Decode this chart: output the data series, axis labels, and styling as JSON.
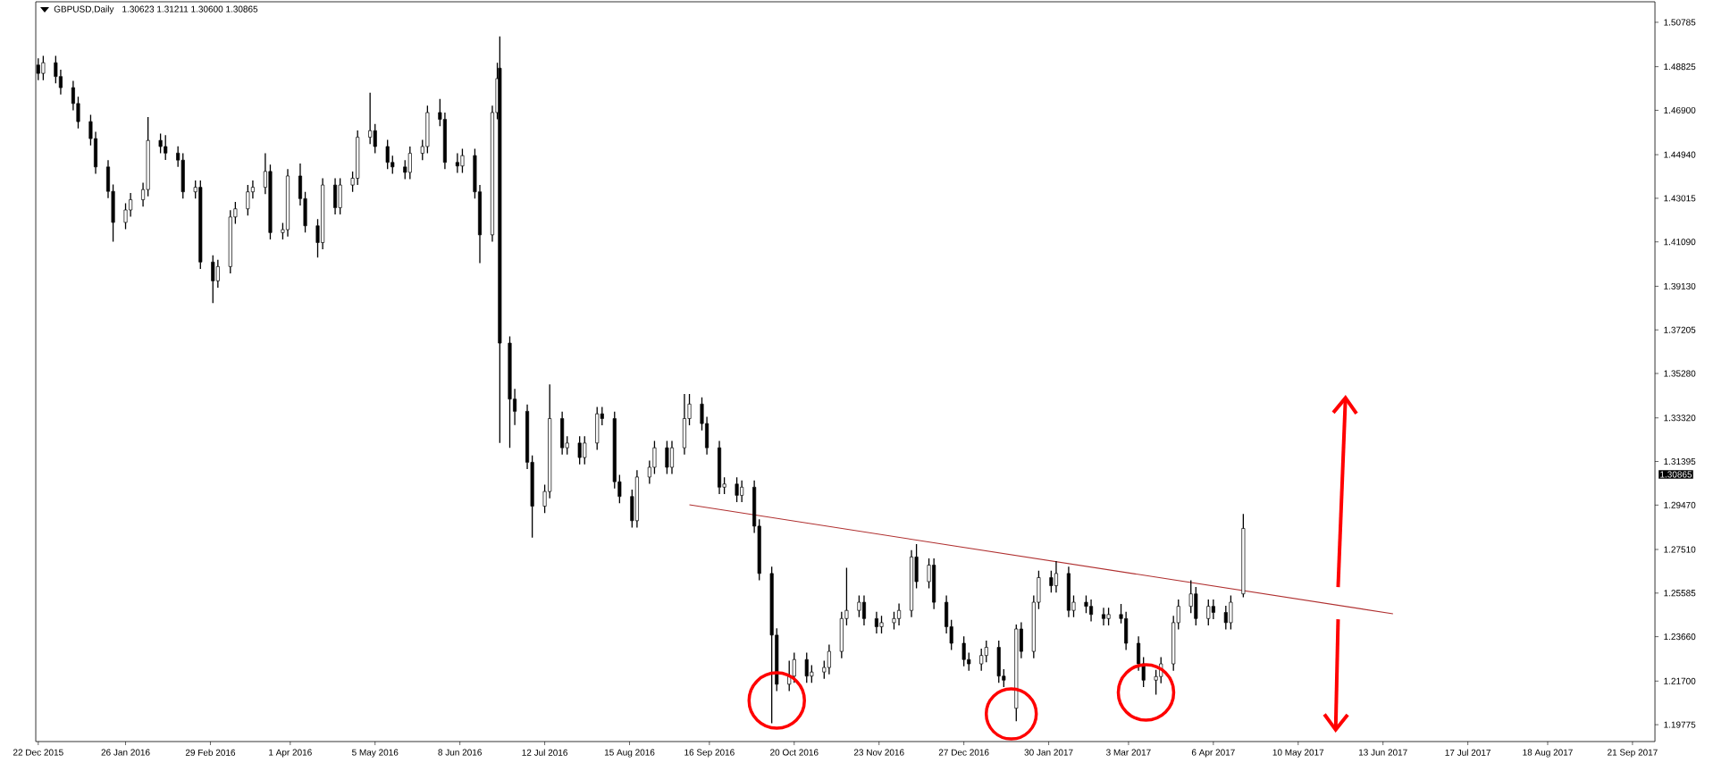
{
  "chart_data": {
    "type": "candlestick",
    "title": "GBPUSD,Daily",
    "subtitle": "1.30623 1.31211 1.30600 1.30865",
    "xlim": [
      "2015-12-21",
      "2017-09-30"
    ],
    "ylim": [
      1.1903,
      1.5169
    ],
    "xticks": [
      {
        "value": "2015-12-22",
        "label": "22 Dec 2015"
      },
      {
        "value": "2016-01-26",
        "label": "26 Jan 2016"
      },
      {
        "value": "2016-02-29",
        "label": "29 Feb 2016"
      },
      {
        "value": "2016-04-01",
        "label": "1 Apr 2016"
      },
      {
        "value": "2016-05-05",
        "label": "5 May 2016"
      },
      {
        "value": "2016-06-08",
        "label": "8 Jun 2016"
      },
      {
        "value": "2016-07-12",
        "label": "12 Jul 2016"
      },
      {
        "value": "2016-08-15",
        "label": "15 Aug 2016"
      },
      {
        "value": "2016-09-16",
        "label": "16 Sep 2016"
      },
      {
        "value": "2016-10-20",
        "label": "20 Oct 2016"
      },
      {
        "value": "2016-11-23",
        "label": "23 Nov 2016"
      },
      {
        "value": "2016-12-27",
        "label": "27 Dec 2016"
      },
      {
        "value": "2017-01-30",
        "label": "30 Jan 2017"
      },
      {
        "value": "2017-03-03",
        "label": "3 Mar 2017"
      },
      {
        "value": "2017-04-06",
        "label": "6 Apr 2017"
      },
      {
        "value": "2017-05-10",
        "label": "10 May 2017"
      },
      {
        "value": "2017-06-13",
        "label": "13 Jun 2017"
      },
      {
        "value": "2017-07-17",
        "label": "17 Jul 2017"
      },
      {
        "value": "2017-08-18",
        "label": "18 Aug 2017"
      },
      {
        "value": "2017-09-21",
        "label": "21 Sep 2017"
      }
    ],
    "yticks": [
      1.50785,
      1.48825,
      {
        "value": 1.469,
        "label": "1.46900"
      },
      {
        "value": 1.4494,
        "label": "1.44940"
      },
      1.43015,
      {
        "value": 1.4109,
        "label": "1.41090"
      },
      {
        "value": 1.3913,
        "label": "1.39130"
      },
      1.37205,
      {
        "value": 1.3528,
        "label": "1.35280"
      },
      {
        "value": 1.3332,
        "label": "1.33320"
      },
      1.31395,
      {
        "value": 1.2947,
        "label": "1.29470"
      },
      {
        "value": 1.2751,
        "label": "1.27510"
      },
      1.25585,
      {
        "value": 1.2366,
        "label": "1.23660"
      },
      {
        "value": 1.217,
        "label": "1.21700"
      },
      1.19775
    ],
    "annotations": [
      "1.30865"
    ],
    "series": [
      {
        "type": "line",
        "color": "#b03030",
        "x": [
          "2016-09-08",
          "2017-06-17"
        ],
        "values": [
          1.2948,
          1.2467
        ]
      },
      {
        "color": "#000000",
        "x": [
          "2015-12-22",
          "2015-12-24",
          "2015-12-29",
          "2015-12-31",
          "2016-01-05",
          "2016-01-07",
          "2016-01-12",
          "2016-01-14",
          "2016-01-19",
          "2016-01-21",
          "2016-01-26",
          "2016-01-28",
          "2016-02-02",
          "2016-02-04",
          "2016-02-09",
          "2016-02-11",
          "2016-02-16",
          "2016-02-18",
          "2016-02-23",
          "2016-02-25",
          "2016-03-01",
          "2016-03-03",
          "2016-03-08",
          "2016-03-10",
          "2016-03-15",
          "2016-03-17",
          "2016-03-22",
          "2016-03-24",
          "2016-03-29",
          "2016-03-31",
          "2016-04-05",
          "2016-04-07",
          "2016-04-12",
          "2016-04-14",
          "2016-04-19",
          "2016-04-21",
          "2016-04-26",
          "2016-04-28",
          "2016-05-03",
          "2016-05-05",
          "2016-05-10",
          "2016-05-12",
          "2016-05-17",
          "2016-05-19",
          "2016-05-24",
          "2016-05-26",
          "2016-05-31",
          "2016-06-02",
          "2016-06-07",
          "2016-06-09",
          "2016-06-14",
          "2016-06-16",
          "2016-06-21",
          "2016-06-23",
          "2016-06-24",
          "2016-06-28",
          "2016-06-30",
          "2016-07-05",
          "2016-07-07",
          "2016-07-12",
          "2016-07-14",
          "2016-07-19",
          "2016-07-21",
          "2016-07-26",
          "2016-07-28",
          "2016-08-02",
          "2016-08-04",
          "2016-08-09",
          "2016-08-11",
          "2016-08-16",
          "2016-08-18",
          "2016-08-23",
          "2016-08-25",
          "2016-08-30",
          "2016-09-01",
          "2016-09-06",
          "2016-09-08",
          "2016-09-13",
          "2016-09-15",
          "2016-09-20",
          "2016-09-22",
          "2016-09-27",
          "2016-09-29",
          "2016-10-04",
          "2016-10-06",
          "2016-10-11",
          "2016-10-13",
          "2016-10-18",
          "2016-10-20",
          "2016-10-25",
          "2016-10-27",
          "2016-11-01",
          "2016-11-03",
          "2016-11-08",
          "2016-11-10",
          "2016-11-15",
          "2016-11-17",
          "2016-11-22",
          "2016-11-24",
          "2016-11-29",
          "2016-12-01",
          "2016-12-06",
          "2016-12-08",
          "2016-12-13",
          "2016-12-15",
          "2016-12-20",
          "2016-12-22",
          "2016-12-27",
          "2016-12-29",
          "2017-01-03",
          "2017-01-05",
          "2017-01-10",
          "2017-01-12",
          "2017-01-17",
          "2017-01-19",
          "2017-01-24",
          "2017-01-26",
          "2017-01-31",
          "2017-02-02",
          "2017-02-07",
          "2017-02-09",
          "2017-02-14",
          "2017-02-16",
          "2017-02-21",
          "2017-02-23",
          "2017-02-28",
          "2017-03-02",
          "2017-03-07",
          "2017-03-09",
          "2017-03-14",
          "2017-03-16",
          "2017-03-21",
          "2017-03-23",
          "2017-03-28",
          "2017-03-30",
          "2017-04-04",
          "2017-04-06",
          "2017-04-11",
          "2017-04-13",
          "2017-04-18"
        ],
        "ohlc": [
          [
            1.489,
            1.492,
            1.4823,
            1.4853
          ],
          [
            1.4853,
            1.493,
            1.4823,
            1.49
          ],
          [
            1.49,
            1.493,
            1.4809,
            1.4839
          ],
          [
            1.4839,
            1.4869,
            1.476,
            1.479
          ],
          [
            1.479,
            1.482,
            1.469,
            1.472
          ],
          [
            1.472,
            1.475,
            1.461,
            1.464
          ],
          [
            1.464,
            1.467,
            1.4535,
            1.4565
          ],
          [
            1.4565,
            1.4595,
            1.441,
            1.444
          ],
          [
            1.444,
            1.447,
            1.4302,
            1.4332
          ],
          [
            1.4332,
            1.4362,
            1.411,
            1.4195
          ],
          [
            1.4195,
            1.428,
            1.4165,
            1.425
          ],
          [
            1.425,
            1.4325,
            1.422,
            1.4295
          ],
          [
            1.4295,
            1.437,
            1.4265,
            1.434
          ],
          [
            1.434,
            1.466,
            1.431,
            1.4557
          ],
          [
            1.4557,
            1.4587,
            1.45,
            1.453
          ],
          [
            1.453,
            1.458,
            1.4471,
            1.4501
          ],
          [
            1.4501,
            1.4531,
            1.444,
            1.447
          ],
          [
            1.447,
            1.45,
            1.43,
            1.433
          ],
          [
            1.433,
            1.438,
            1.43,
            1.435
          ],
          [
            1.435,
            1.438,
            1.399,
            1.402
          ],
          [
            1.402,
            1.405,
            1.3839,
            1.3937
          ],
          [
            1.3937,
            1.403,
            1.3907,
            1.4
          ],
          [
            1.4,
            1.4249,
            1.397,
            1.4219
          ],
          [
            1.4219,
            1.4285,
            1.4189,
            1.4255
          ],
          [
            1.4255,
            1.436,
            1.4225,
            1.433
          ],
          [
            1.433,
            1.438,
            1.43,
            1.435
          ],
          [
            1.435,
            1.45,
            1.432,
            1.442
          ],
          [
            1.442,
            1.445,
            1.412,
            1.415
          ],
          [
            1.415,
            1.4193,
            1.412,
            1.4163
          ],
          [
            1.4163,
            1.443,
            1.4133,
            1.44
          ],
          [
            1.44,
            1.4455,
            1.427,
            1.43
          ],
          [
            1.43,
            1.433,
            1.415,
            1.418
          ],
          [
            1.418,
            1.421,
            1.404,
            1.4106
          ],
          [
            1.4106,
            1.439,
            1.4076,
            1.436
          ],
          [
            1.436,
            1.439,
            1.423,
            1.426
          ],
          [
            1.426,
            1.439,
            1.423,
            1.436
          ],
          [
            1.436,
            1.442,
            1.433,
            1.439
          ],
          [
            1.439,
            1.4601,
            1.436,
            1.4571
          ],
          [
            1.4571,
            1.4768,
            1.4541,
            1.46
          ],
          [
            1.46,
            1.463,
            1.45,
            1.453
          ],
          [
            1.453,
            1.456,
            1.443,
            1.446
          ],
          [
            1.446,
            1.449,
            1.441,
            1.444
          ],
          [
            1.444,
            1.447,
            1.4386,
            1.4416
          ],
          [
            1.4416,
            1.453,
            1.4386,
            1.45
          ],
          [
            1.45,
            1.456,
            1.447,
            1.453
          ],
          [
            1.453,
            1.471,
            1.45,
            1.468
          ],
          [
            1.468,
            1.474,
            1.462,
            1.465
          ],
          [
            1.465,
            1.468,
            1.443,
            1.446
          ],
          [
            1.446,
            1.45,
            1.4414,
            1.4444
          ],
          [
            1.4444,
            1.452,
            1.4414,
            1.449
          ],
          [
            1.449,
            1.452,
            1.43,
            1.433
          ],
          [
            1.433,
            1.436,
            1.4015,
            1.414
          ],
          [
            1.414,
            1.471,
            1.411,
            1.468
          ],
          [
            1.468,
            1.49,
            1.465,
            1.483
          ],
          [
            1.4876,
            1.5016,
            1.3221,
            1.3662
          ],
          [
            1.3662,
            1.3692,
            1.32,
            1.3415
          ],
          [
            1.3415,
            1.346,
            1.33,
            1.3361
          ],
          [
            1.3361,
            1.3391,
            1.3106,
            1.3136
          ],
          [
            1.3136,
            1.3166,
            1.2803,
            1.2942
          ],
          [
            1.2942,
            1.3037,
            1.2912,
            1.3007
          ],
          [
            1.3007,
            1.348,
            1.2977,
            1.3329
          ],
          [
            1.3329,
            1.3359,
            1.317,
            1.32
          ],
          [
            1.32,
            1.3251,
            1.317,
            1.3221
          ],
          [
            1.3221,
            1.3251,
            1.3127,
            1.3157
          ],
          [
            1.3157,
            1.3251,
            1.3127,
            1.3221
          ],
          [
            1.3221,
            1.338,
            1.3191,
            1.335
          ],
          [
            1.335,
            1.338,
            1.3299,
            1.3329
          ],
          [
            1.3329,
            1.3359,
            1.302,
            1.305
          ],
          [
            1.305,
            1.308,
            1.2955,
            1.2985
          ],
          [
            1.2985,
            1.3015,
            1.2848,
            1.2878
          ],
          [
            1.2878,
            1.3101,
            1.2848,
            1.3071
          ],
          [
            1.3071,
            1.3144,
            1.3041,
            1.3114
          ],
          [
            1.3114,
            1.323,
            1.3084,
            1.32
          ],
          [
            1.32,
            1.323,
            1.3084,
            1.3114
          ],
          [
            1.3114,
            1.323,
            1.3084,
            1.32
          ],
          [
            1.32,
            1.3437,
            1.317,
            1.3329
          ],
          [
            1.3329,
            1.3437,
            1.3299,
            1.3393
          ],
          [
            1.3393,
            1.3423,
            1.3277,
            1.3307
          ],
          [
            1.3307,
            1.3337,
            1.317,
            1.32
          ],
          [
            1.32,
            1.323,
            1.2996,
            1.3026
          ],
          [
            1.3026,
            1.307,
            1.2996,
            1.304
          ],
          [
            1.304,
            1.307,
            1.296,
            1.299
          ],
          [
            1.299,
            1.3056,
            1.296,
            1.3026
          ],
          [
            1.3026,
            1.3056,
            1.2824,
            1.2854
          ],
          [
            1.2854,
            1.2884,
            1.2615,
            1.2645
          ],
          [
            1.2645,
            1.2675,
            1.1984,
            1.2373
          ],
          [
            1.2373,
            1.2403,
            1.2126,
            1.2156
          ],
          [
            1.2156,
            1.226,
            1.2126,
            1.2192
          ],
          [
            1.2192,
            1.2295,
            1.2162,
            1.2265
          ],
          [
            1.2265,
            1.2295,
            1.2162,
            1.2192
          ],
          [
            1.2192,
            1.224,
            1.2162,
            1.221
          ],
          [
            1.221,
            1.226,
            1.218,
            1.223
          ],
          [
            1.223,
            1.2331,
            1.22,
            1.2301
          ],
          [
            1.2301,
            1.2476,
            1.2271,
            1.2446
          ],
          [
            1.2446,
            1.267,
            1.2416,
            1.2482
          ],
          [
            1.2482,
            1.2548,
            1.2452,
            1.2518
          ],
          [
            1.2518,
            1.2548,
            1.2416,
            1.2446
          ],
          [
            1.2446,
            1.2476,
            1.238,
            1.241
          ],
          [
            1.241,
            1.2458,
            1.238,
            1.2428
          ],
          [
            1.2428,
            1.2476,
            1.2398,
            1.2446
          ],
          [
            1.2446,
            1.2512,
            1.2416,
            1.2482
          ],
          [
            1.2482,
            1.2748,
            1.2452,
            1.2718
          ],
          [
            1.2718,
            1.2775,
            1.2579,
            1.2609
          ],
          [
            1.2609,
            1.2712,
            1.2579,
            1.2682
          ],
          [
            1.2682,
            1.2712,
            1.2488,
            1.2518
          ],
          [
            1.2518,
            1.2548,
            1.238,
            1.241
          ],
          [
            1.241,
            1.244,
            1.2307,
            1.2337
          ],
          [
            1.2337,
            1.2367,
            1.2235,
            1.2265
          ],
          [
            1.2265,
            1.2295,
            1.2216,
            1.2246
          ],
          [
            1.2246,
            1.2313,
            1.2216,
            1.2283
          ],
          [
            1.2283,
            1.2349,
            1.2253,
            1.2319
          ],
          [
            1.2319,
            1.2349,
            1.2162,
            1.2192
          ],
          [
            1.2192,
            1.2222,
            1.2144,
            1.2174
          ],
          [
            1.205,
            1.242,
            1.1993,
            1.24
          ],
          [
            1.24,
            1.243,
            1.2271,
            1.2301
          ],
          [
            1.2301,
            1.2548,
            1.2271,
            1.2518
          ],
          [
            1.2518,
            1.2657,
            1.2488,
            1.2627
          ],
          [
            1.2627,
            1.2657,
            1.2561,
            1.2591
          ],
          [
            1.2591,
            1.27,
            1.2561,
            1.2645
          ],
          [
            1.2645,
            1.2675,
            1.2452,
            1.2482
          ],
          [
            1.2482,
            1.2548,
            1.2452,
            1.2518
          ],
          [
            1.2518,
            1.2548,
            1.247,
            1.25
          ],
          [
            1.25,
            1.253,
            1.2434,
            1.2464
          ],
          [
            1.2464,
            1.2494,
            1.2416,
            1.2446
          ],
          [
            1.2446,
            1.2494,
            1.2416,
            1.2464
          ],
          [
            1.2464,
            1.251,
            1.2425,
            1.2446
          ],
          [
            1.2446,
            1.2476,
            1.2307,
            1.2337
          ],
          [
            1.2337,
            1.2367,
            1.2216,
            1.2246
          ],
          [
            1.2246,
            1.2276,
            1.2144,
            1.2174
          ],
          [
            1.2174,
            1.222,
            1.211,
            1.219
          ],
          [
            1.219,
            1.2276,
            1.216,
            1.2246
          ],
          [
            1.2246,
            1.2458,
            1.2216,
            1.2428
          ],
          [
            1.2428,
            1.253,
            1.2398,
            1.25
          ],
          [
            1.25,
            1.2615,
            1.247,
            1.2555
          ],
          [
            1.2555,
            1.2585,
            1.2416,
            1.2446
          ],
          [
            1.2446,
            1.253,
            1.2416,
            1.25
          ],
          [
            1.25,
            1.253,
            1.2443,
            1.2473
          ],
          [
            1.2473,
            1.2503,
            1.2398,
            1.2428
          ],
          [
            1.2428,
            1.2548,
            1.2398,
            1.2518
          ],
          [
            1.2555,
            1.2908,
            1.254,
            1.2844
          ]
        ]
      }
    ]
  }
}
